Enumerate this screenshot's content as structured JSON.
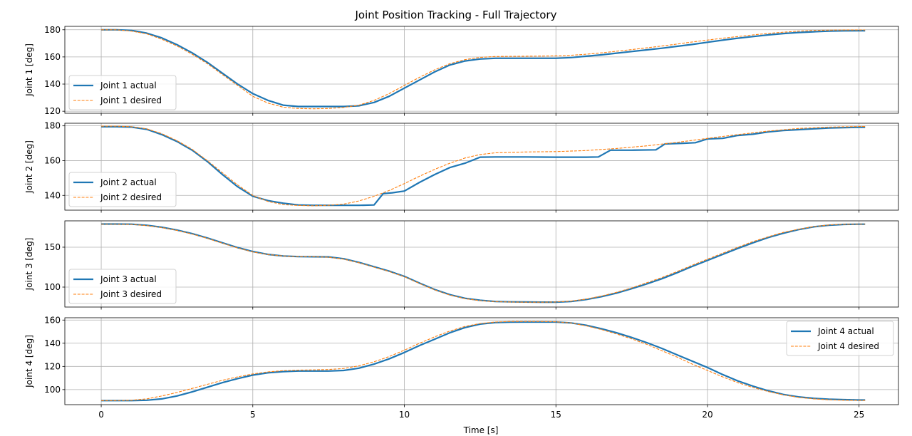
{
  "chart_data": {
    "type": "line",
    "title": "Joint Position Tracking - Full Trajectory",
    "xlabel": "Time [s]",
    "xlim": [
      -1.2,
      26.3
    ],
    "xticks": [
      0,
      5,
      10,
      15,
      20,
      25
    ],
    "grid": true,
    "colors": {
      "actual": "#1f77b4",
      "desired": "#ff7f0e"
    },
    "panels": [
      {
        "ylabel": "Joint 1 [deg]",
        "ylim": [
          118.5,
          182.5
        ],
        "yticks": [
          120,
          140,
          160,
          180
        ],
        "legend_position": "lower-left",
        "series": [
          {
            "name": "Joint 1 actual",
            "style": "actual",
            "x": [
              0,
              0.5,
              1,
              1.5,
              2,
              2.5,
              3,
              3.5,
              4,
              4.5,
              5,
              5.5,
              6,
              6.5,
              7,
              7.5,
              8,
              8.5,
              9,
              9.5,
              10,
              10.5,
              11,
              11.5,
              12,
              12.5,
              13,
              13.5,
              14,
              14.5,
              15,
              15.5,
              16,
              16.5,
              17,
              17.5,
              18,
              18.5,
              19,
              19.5,
              20,
              20.5,
              21,
              21.5,
              22,
              22.5,
              23,
              23.5,
              24,
              24.5,
              25,
              25.2
            ],
            "y": [
              180,
              180,
              179.5,
              177.5,
              174,
              169,
              163,
              156,
              148,
              140,
              133,
              128,
              124.5,
              123.5,
              123.5,
              123.5,
              123.5,
              124,
              126.5,
              131,
              137,
              143,
              149,
              154,
              157,
              158.5,
              159,
              159,
              159,
              159,
              159,
              159.5,
              160.5,
              161.5,
              162.8,
              164,
              165.2,
              166.4,
              167.8,
              169.2,
              170.8,
              172.3,
              173.8,
              175,
              176.2,
              177.2,
              178,
              178.5,
              179,
              179.2,
              179.3,
              179.3
            ]
          },
          {
            "name": "Joint 1 desired",
            "style": "desired",
            "x": [
              0,
              0.5,
              1,
              1.5,
              2,
              2.5,
              3,
              3.5,
              4,
              4.5,
              5,
              5.5,
              6,
              6.5,
              7,
              7.5,
              8,
              8.5,
              9,
              9.5,
              10,
              10.5,
              11,
              11.5,
              12,
              12.5,
              13,
              13.5,
              14,
              14.5,
              15,
              15.5,
              16,
              16.5,
              17,
              17.5,
              18,
              18.5,
              19,
              19.5,
              20,
              20.5,
              21,
              21.5,
              22,
              22.5,
              23,
              23.5,
              24,
              24.5,
              25,
              25.2
            ],
            "y": [
              180,
              180,
              179,
              177,
              173,
              168,
              162,
              155,
              147,
              139,
              131,
              126,
              123,
              122,
              121.8,
              122,
              122.8,
              124.5,
              128,
              133,
              139,
              145,
              150.5,
              155,
              158,
              159.7,
              160.3,
              160.4,
              160.5,
              160.6,
              160.8,
              161.2,
              162,
              163,
              164.2,
              165.4,
              166.7,
              168,
              169.5,
              171,
              172.4,
              173.8,
              175,
              176.2,
              177.3,
              178.2,
              179,
              179.5,
              179.7,
              179.8,
              179.8,
              179.8
            ]
          }
        ]
      },
      {
        "ylabel": "Joint 2 [deg]",
        "ylim": [
          131.5,
          181.5
        ],
        "yticks": [
          140,
          160,
          180
        ],
        "legend_position": "lower-left",
        "series": [
          {
            "name": "Joint 2 actual",
            "style": "actual",
            "x": [
              0,
              0.5,
              1,
              1.5,
              2,
              2.5,
              3,
              3.5,
              4,
              4.5,
              5,
              5.5,
              6,
              6.5,
              7,
              7.5,
              8,
              8.5,
              9,
              9.3,
              9.6,
              10,
              10.5,
              11,
              11.5,
              12,
              12.5,
              13,
              14,
              15,
              16,
              16.4,
              16.8,
              17.5,
              18.3,
              18.6,
              19.2,
              19.6,
              20,
              20.5,
              21,
              21.5,
              22,
              22.5,
              23,
              23.5,
              24,
              24.5,
              25,
              25.2
            ],
            "y": [
              179.5,
              179.5,
              179.3,
              178,
              175,
              171,
              166,
              159.5,
              152,
              145,
              139.5,
              137,
              135.5,
              134.5,
              134.3,
              134.3,
              134.3,
              134.3,
              134.5,
              141,
              141.5,
              142.5,
              147.5,
              152,
              156,
              158.5,
              162,
              162.1,
              162.1,
              162,
              162,
              162.1,
              166,
              166,
              166.2,
              169.6,
              170,
              170.3,
              172.5,
              172.8,
              174.5,
              175.2,
              176.5,
              177.3,
              177.8,
              178.3,
              178.8,
              179,
              179.2,
              179.2
            ]
          },
          {
            "name": "Joint 2 desired",
            "style": "desired",
            "x": [
              0,
              0.5,
              1,
              1.5,
              2,
              2.5,
              3,
              3.5,
              4,
              4.5,
              5,
              5.5,
              6,
              6.5,
              7,
              7.5,
              8,
              8.5,
              9,
              9.5,
              10,
              10.5,
              11,
              11.5,
              12,
              12.5,
              13,
              14,
              15,
              16,
              17,
              18,
              19,
              20,
              21,
              22,
              23,
              24,
              25,
              25.2
            ],
            "y": [
              179.8,
              179.8,
              179.5,
              178.3,
              175.5,
              171.5,
              166.5,
              160,
              153,
              146,
              140,
              136.5,
              134.7,
              134.2,
              134,
              134.3,
              135,
              136.8,
              139.5,
              142.8,
              146.8,
              151,
              155,
              158.5,
              161.5,
              163.5,
              164.5,
              165,
              165.2,
              165.8,
              167,
              168.5,
              170.5,
              172.8,
              175,
              177,
              178.5,
              179.3,
              179.6,
              179.6
            ]
          }
        ]
      },
      {
        "ylabel": "Joint 3 [deg]",
        "ylim": [
          75,
          183
        ],
        "yticks": [
          100,
          150
        ],
        "legend_position": "lower-left",
        "series": [
          {
            "name": "Joint 3 actual",
            "style": "actual",
            "x": [
              0,
              0.5,
              1,
              1.5,
              2,
              2.5,
              3,
              3.5,
              4,
              4.5,
              5,
              5.5,
              6,
              6.5,
              7,
              7.5,
              8,
              8.5,
              9,
              9.5,
              10,
              10.5,
              11,
              11.5,
              12,
              12.5,
              13,
              13.5,
              14,
              14.5,
              15,
              15.5,
              16,
              16.5,
              17,
              17.5,
              18,
              18.5,
              19,
              19.5,
              20,
              20.5,
              21,
              21.5,
              22,
              22.5,
              23,
              23.5,
              24,
              24.5,
              25,
              25.2
            ],
            "y": [
              179,
              179,
              178.8,
              177.5,
              175,
              171.5,
              167,
              161.5,
              155.5,
              149.5,
              144.5,
              141,
              139,
              138.2,
              138,
              137.8,
              135.5,
              131,
              125.5,
              120,
              113.5,
              105,
              97,
              90.5,
              86,
              83.5,
              82,
              81.5,
              81.3,
              81.2,
              81.2,
              82,
              84.5,
              88,
              92.5,
              98,
              104,
              110.5,
              118,
              126,
              133.5,
              141,
              148.5,
              155.5,
              162,
              167.5,
              172,
              175.5,
              177.5,
              178.5,
              178.8,
              178.8
            ]
          },
          {
            "name": "Joint 3 desired",
            "style": "desired",
            "x": [
              0,
              0.5,
              1,
              1.5,
              2,
              2.5,
              3,
              3.5,
              4,
              4.5,
              5,
              5.5,
              6,
              6.5,
              7,
              7.5,
              8,
              8.5,
              9,
              9.5,
              10,
              10.5,
              11,
              11.5,
              12,
              12.5,
              13,
              13.5,
              14,
              14.5,
              15,
              15.5,
              16,
              16.5,
              17,
              17.5,
              18,
              18.5,
              19,
              19.5,
              20,
              20.5,
              21,
              21.5,
              22,
              22.5,
              23,
              23.5,
              24,
              24.5,
              25,
              25.2
            ],
            "y": [
              179,
              179,
              178.5,
              177,
              174.5,
              171,
              166.5,
              161,
              155,
              149,
              144,
              140.8,
              139,
              138.3,
              138,
              137.5,
              135,
              130.5,
              125,
              119.5,
              113,
              104.5,
              96.5,
              90,
              85.5,
              83,
              81.8,
              81.3,
              81.1,
              81.1,
              81.3,
              82.5,
              85,
              88.8,
              93.5,
              99,
              105.5,
              112,
              119.5,
              127.5,
              135,
              142.5,
              150,
              157,
              163,
              168.5,
              172.5,
              175.8,
              177.8,
              178.8,
              179,
              179
            ]
          }
        ]
      },
      {
        "ylabel": "Joint 4 [deg]",
        "ylim": [
          87,
          162
        ],
        "yticks": [
          100,
          120,
          140,
          160
        ],
        "legend_position": "upper-right",
        "series": [
          {
            "name": "Joint 4 actual",
            "style": "actual",
            "x": [
              0,
              0.5,
              1,
              1.5,
              2,
              2.5,
              3,
              3.5,
              4,
              4.5,
              5,
              5.5,
              6,
              6.5,
              7,
              7.5,
              8,
              8.5,
              9,
              9.5,
              10,
              10.5,
              11,
              11.5,
              12,
              12.5,
              13,
              13.5,
              14,
              14.5,
              15,
              15.5,
              16,
              16.5,
              17,
              17.5,
              18,
              18.5,
              19,
              19.5,
              20,
              20.5,
              21,
              21.5,
              22,
              22.5,
              23,
              23.5,
              24,
              24.5,
              25,
              25.2
            ],
            "y": [
              90.5,
              90.5,
              90.5,
              90.8,
              92,
              94.5,
              98,
              102,
              106,
              109.5,
              112.5,
              114.5,
              115.5,
              116,
              116,
              116,
              116.5,
              118.5,
              122,
              126.5,
              132,
              138,
              143.5,
              149,
              153.5,
              156.5,
              157.8,
              158.2,
              158.3,
              158.3,
              158.3,
              157.5,
              155.5,
              152.5,
              149,
              145,
              140.5,
              135.5,
              130,
              124.5,
              119,
              113,
              107.5,
              103,
              99,
              95.8,
              93.7,
              92.5,
              91.7,
              91.3,
              91,
              91
            ]
          },
          {
            "name": "Joint 4 desired",
            "style": "desired",
            "x": [
              0,
              0.5,
              1,
              1.5,
              2,
              2.5,
              3,
              3.5,
              4,
              4.5,
              5,
              5.5,
              6,
              6.5,
              7,
              7.5,
              8,
              8.5,
              9,
              9.5,
              10,
              10.5,
              11,
              11.5,
              12,
              12.5,
              13,
              13.5,
              14,
              14.5,
              15,
              15.5,
              16,
              16.5,
              17,
              17.5,
              18,
              18.5,
              19,
              19.5,
              20,
              20.5,
              21,
              21.5,
              22,
              22.5,
              23,
              23.5,
              24,
              24.5,
              25,
              25.2
            ],
            "y": [
              90.5,
              90.5,
              90.8,
              92,
              94.5,
              97.5,
              101,
              104.5,
              108,
              111,
              113.5,
              115.3,
              116.3,
              116.8,
              117,
              117.3,
              118.2,
              120.5,
              124,
              128.5,
              134,
              140,
              145.5,
              150.5,
              154.5,
              157,
              158.3,
              158.8,
              158.8,
              158.8,
              158.5,
              157.5,
              155,
              151.8,
              148,
              143.8,
              139,
              133.5,
              128,
              122,
              116.5,
              111,
              106,
              101.8,
              98.3,
              95.5,
              93.3,
              92,
              91.2,
              90.8,
              90.6,
              90.6
            ]
          }
        ]
      }
    ]
  }
}
